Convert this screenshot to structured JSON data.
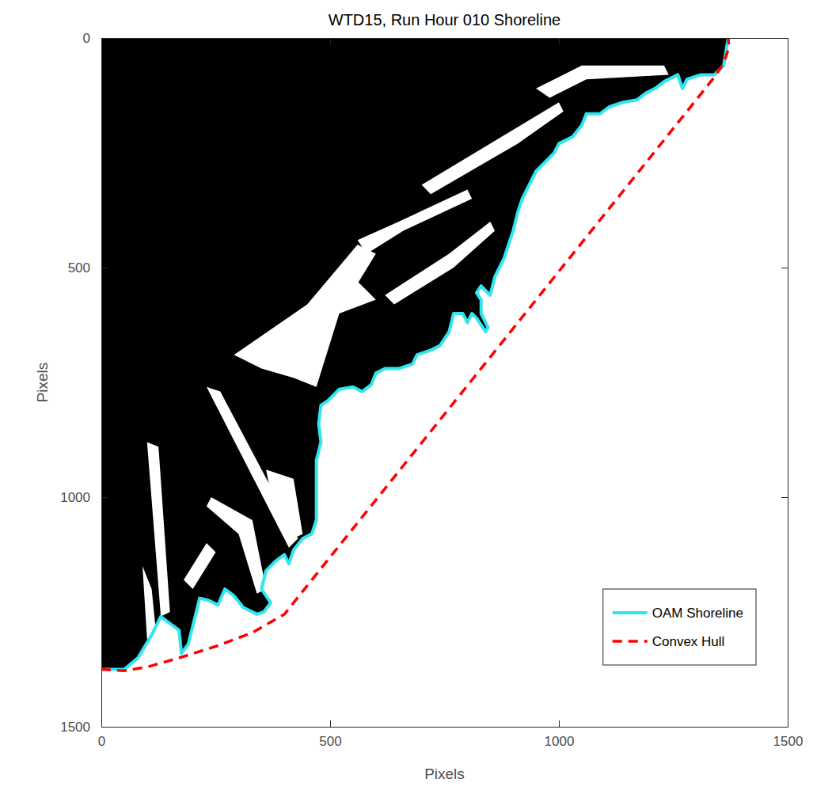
{
  "chart_data": {
    "type": "line",
    "title": "WTD15, Run Hour 010 Shoreline",
    "x_label": "Pixels",
    "y_label": "Pixels",
    "xlim": [
      0,
      1500
    ],
    "ylim": [
      1500,
      0
    ],
    "xticks": [
      0,
      500,
      1000,
      1500
    ],
    "yticks": [
      0,
      500,
      1000,
      1500
    ],
    "grid": false,
    "legend": "lower right",
    "land": {
      "color": "#000000",
      "x": [
        0,
        0,
        50,
        80,
        110,
        130,
        150,
        170,
        175,
        190,
        200,
        215,
        235,
        255,
        270,
        290,
        310,
        340,
        355,
        370,
        350,
        360,
        380,
        400,
        410,
        420,
        440,
        460,
        470,
        470,
        470,
        480,
        475,
        480,
        495,
        520,
        550,
        570,
        590,
        600,
        620,
        650,
        680,
        690,
        720,
        740,
        760,
        770,
        790,
        800,
        810,
        820,
        840,
        845,
        830,
        830,
        820,
        830,
        850,
        855,
        860,
        880,
        890,
        900,
        910,
        920,
        935,
        950,
        970,
        990,
        1000,
        1030,
        1050,
        1060,
        1090,
        1110,
        1140,
        1170,
        1190,
        1210,
        1230,
        1260,
        1270,
        1280,
        1310,
        1340,
        1360,
        1370
      ],
      "y": [
        0,
        1375,
        1375,
        1350,
        1300,
        1260,
        1275,
        1290,
        1340,
        1320,
        1280,
        1220,
        1225,
        1235,
        1200,
        1215,
        1240,
        1255,
        1250,
        1230,
        1200,
        1160,
        1140,
        1125,
        1145,
        1115,
        1090,
        1080,
        1050,
        1000,
        920,
        880,
        840,
        800,
        790,
        765,
        760,
        770,
        755,
        730,
        720,
        720,
        710,
        690,
        680,
        670,
        640,
        600,
        600,
        620,
        600,
        610,
        640,
        630,
        600,
        570,
        555,
        540,
        560,
        540,
        520,
        480,
        450,
        420,
        380,
        350,
        320,
        290,
        270,
        250,
        230,
        215,
        190,
        165,
        165,
        150,
        140,
        135,
        120,
        110,
        95,
        80,
        110,
        90,
        80,
        80,
        60,
        0
      ]
    },
    "channels": {
      "color": "#ffffff",
      "polygons": [
        {
          "x": [
            290,
            450,
            560,
            600,
            520,
            470,
            420,
            350
          ],
          "y": [
            690,
            580,
            450,
            470,
            600,
            760,
            740,
            720
          ]
        },
        {
          "x": [
            230,
            260,
            430,
            410
          ],
          "y": [
            760,
            770,
            1090,
            1110
          ]
        },
        {
          "x": [
            100,
            125,
            150,
            130
          ],
          "y": [
            880,
            890,
            1250,
            1260
          ]
        },
        {
          "x": [
            950,
            1050,
            1230,
            1240,
            1060,
            980
          ],
          "y": [
            110,
            60,
            60,
            80,
            90,
            130
          ]
        },
        {
          "x": [
            700,
            900,
            1000,
            1010,
            910,
            720
          ],
          "y": [
            320,
            200,
            140,
            160,
            230,
            340
          ]
        },
        {
          "x": [
            560,
            650,
            800,
            810,
            660,
            580
          ],
          "y": [
            440,
            400,
            330,
            350,
            420,
            470
          ]
        },
        {
          "x": [
            620,
            760,
            850,
            860,
            770,
            640
          ],
          "y": [
            560,
            470,
            400,
            420,
            500,
            580
          ]
        },
        {
          "x": [
            240,
            330,
            360,
            340,
            300,
            230
          ],
          "y": [
            1000,
            1050,
            1200,
            1210,
            1080,
            1020
          ]
        },
        {
          "x": [
            180,
            230,
            250,
            200
          ],
          "y": [
            1180,
            1100,
            1120,
            1200
          ]
        },
        {
          "x": [
            90,
            110,
            120,
            100
          ],
          "y": [
            1150,
            1200,
            1300,
            1310
          ]
        },
        {
          "x": [
            360,
            420,
            440,
            420,
            370
          ],
          "y": [
            940,
            960,
            1080,
            1090,
            990
          ]
        },
        {
          "x": [
            480,
            560,
            600,
            520
          ],
          "y": [
            560,
            530,
            570,
            600
          ]
        }
      ]
    },
    "series": [
      {
        "name": "OAM Shoreline",
        "color": "#2ee6f0",
        "line_style": "solid",
        "x": [
          0,
          50,
          80,
          110,
          130,
          150,
          170,
          175,
          190,
          200,
          215,
          235,
          255,
          270,
          290,
          310,
          340,
          355,
          370,
          350,
          360,
          380,
          400,
          410,
          420,
          440,
          460,
          470,
          470,
          470,
          480,
          475,
          480,
          495,
          520,
          550,
          570,
          590,
          600,
          620,
          650,
          680,
          690,
          720,
          740,
          760,
          770,
          790,
          800,
          810,
          820,
          840,
          845,
          830,
          830,
          820,
          830,
          850,
          855,
          860,
          880,
          890,
          900,
          910,
          920,
          935,
          950,
          970,
          990,
          1000,
          1030,
          1050,
          1060,
          1090,
          1110,
          1140,
          1170,
          1190,
          1210,
          1230,
          1260,
          1270,
          1280,
          1310,
          1340,
          1360,
          1370
        ],
        "values": [
          1375,
          1375,
          1350,
          1300,
          1260,
          1275,
          1290,
          1340,
          1320,
          1280,
          1220,
          1225,
          1235,
          1200,
          1215,
          1240,
          1255,
          1250,
          1230,
          1200,
          1160,
          1140,
          1125,
          1145,
          1115,
          1090,
          1080,
          1050,
          1000,
          920,
          880,
          840,
          800,
          790,
          765,
          760,
          770,
          755,
          730,
          720,
          720,
          710,
          690,
          680,
          670,
          640,
          600,
          600,
          620,
          600,
          610,
          640,
          630,
          600,
          570,
          555,
          540,
          560,
          540,
          520,
          480,
          450,
          420,
          380,
          350,
          320,
          290,
          270,
          250,
          230,
          215,
          190,
          165,
          165,
          150,
          140,
          135,
          120,
          110,
          95,
          80,
          110,
          90,
          80,
          80,
          60,
          0
        ]
      },
      {
        "name": "Convex Hull",
        "color": "#ff0000",
        "line_style": "dashed",
        "x": [
          0,
          50,
          100,
          170,
          250,
          330,
          400,
          1340,
          1360,
          1372,
          1370
        ],
        "values": [
          1375,
          1378,
          1370,
          1350,
          1325,
          1295,
          1255,
          85,
          55,
          20,
          0
        ]
      }
    ]
  }
}
